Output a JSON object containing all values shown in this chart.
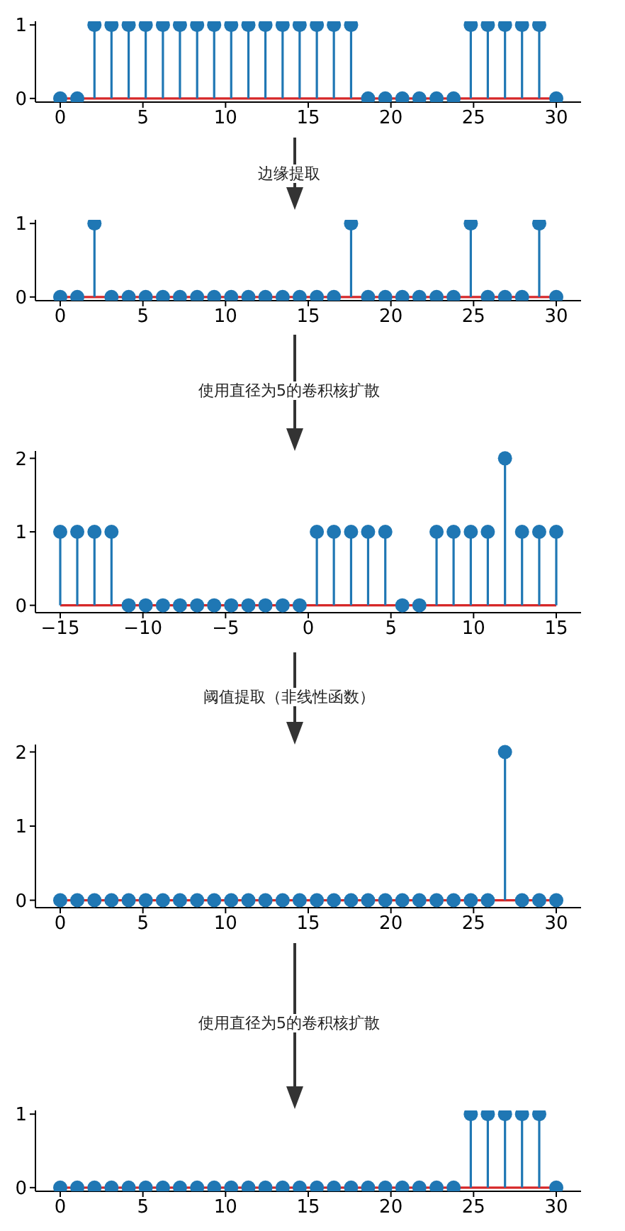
{
  "chart_data": [
    {
      "type": "lollipop",
      "x": [
        0,
        1.03,
        2.07,
        3.1,
        4.14,
        5.17,
        6.21,
        7.24,
        8.28,
        9.31,
        10.34,
        11.38,
        12.41,
        13.45,
        14.48,
        15.52,
        16.55,
        17.59,
        18.62,
        19.66,
        20.69,
        21.72,
        22.76,
        23.79,
        24.83,
        25.86,
        26.9,
        27.93,
        28.97,
        30
      ],
      "series": [
        {
          "color": "#1f77b4",
          "values": [
            0,
            0,
            1,
            1,
            1,
            1,
            1,
            1,
            1,
            1,
            1,
            1,
            1,
            1,
            1,
            1,
            1,
            1,
            0,
            0,
            0,
            0,
            0,
            0,
            1,
            1,
            1,
            1,
            1,
            0
          ]
        }
      ],
      "xlim": [
        -1.5,
        31.5
      ],
      "xticks": [
        0,
        5,
        10,
        15,
        20,
        25,
        30
      ],
      "ylim": [
        -0.05,
        1.05
      ],
      "yticks": [
        0,
        1
      ],
      "marker": "circle",
      "grid": false,
      "legend": false,
      "ref_lines": [
        {
          "axis": "y",
          "value": 0,
          "color": "#d62728"
        }
      ],
      "annotations": [
        "边缘提取"
      ]
    },
    {
      "type": "lollipop",
      "x": [
        0,
        1.03,
        2.07,
        3.1,
        4.14,
        5.17,
        6.21,
        7.24,
        8.28,
        9.31,
        10.34,
        11.38,
        12.41,
        13.45,
        14.48,
        15.52,
        16.55,
        17.59,
        18.62,
        19.66,
        20.69,
        21.72,
        22.76,
        23.79,
        24.83,
        25.86,
        26.9,
        27.93,
        28.97,
        30
      ],
      "series": [
        {
          "color": "#1f77b4",
          "values": [
            0,
            0,
            1,
            0,
            0,
            0,
            0,
            0,
            0,
            0,
            0,
            0,
            0,
            0,
            0,
            0,
            0,
            1,
            0,
            0,
            0,
            0,
            0,
            0,
            1,
            0,
            0,
            0,
            1,
            0
          ]
        }
      ],
      "xlim": [
        -1.5,
        31.5
      ],
      "xticks": [
        0,
        5,
        10,
        15,
        20,
        25,
        30
      ],
      "ylim": [
        -0.05,
        1.05
      ],
      "yticks": [
        0,
        1
      ],
      "marker": "circle",
      "grid": false,
      "legend": false,
      "ref_lines": [
        {
          "axis": "y",
          "value": 0,
          "color": "#d62728"
        }
      ],
      "annotations": [
        "使用直径为5的卷积核扩散"
      ]
    },
    {
      "type": "lollipop",
      "x": [
        -15,
        -13.97,
        -12.93,
        -11.9,
        -10.86,
        -9.83,
        -8.79,
        -7.76,
        -6.72,
        -5.69,
        -4.66,
        -3.62,
        -2.59,
        -1.55,
        -0.52,
        0.52,
        1.55,
        2.59,
        3.62,
        4.66,
        5.69,
        6.72,
        7.76,
        8.79,
        9.83,
        10.86,
        11.9,
        12.93,
        13.97,
        15
      ],
      "series": [
        {
          "color": "#1f77b4",
          "values": [
            1,
            1,
            1,
            1,
            0,
            0,
            0,
            0,
            0,
            0,
            0,
            0,
            0,
            0,
            0,
            1,
            1,
            1,
            1,
            1,
            0,
            0,
            1,
            1,
            1,
            1,
            2,
            1,
            1,
            1
          ]
        }
      ],
      "xlim": [
        -16.5,
        16.5
      ],
      "xticks": [
        {
          "value": -15,
          "label": "−15"
        },
        {
          "value": -10,
          "label": "−10"
        },
        {
          "value": -5,
          "label": "−5"
        },
        0,
        5,
        10,
        15
      ],
      "ylim": [
        -0.1,
        2.1
      ],
      "yticks": [
        0,
        1,
        2
      ],
      "marker": "circle",
      "grid": false,
      "legend": false,
      "ref_lines": [
        {
          "axis": "y",
          "value": 0,
          "color": "#d62728"
        }
      ],
      "annotations": [
        "阈值提取（非线性函数）"
      ]
    },
    {
      "type": "lollipop",
      "x": [
        0,
        1.03,
        2.07,
        3.1,
        4.14,
        5.17,
        6.21,
        7.24,
        8.28,
        9.31,
        10.34,
        11.38,
        12.41,
        13.45,
        14.48,
        15.52,
        16.55,
        17.59,
        18.62,
        19.66,
        20.69,
        21.72,
        22.76,
        23.79,
        24.83,
        25.86,
        26.9,
        27.93,
        28.97,
        30
      ],
      "series": [
        {
          "color": "#1f77b4",
          "values": [
            0,
            0,
            0,
            0,
            0,
            0,
            0,
            0,
            0,
            0,
            0,
            0,
            0,
            0,
            0,
            0,
            0,
            0,
            0,
            0,
            0,
            0,
            0,
            0,
            0,
            0,
            2,
            0,
            0,
            0
          ]
        }
      ],
      "xlim": [
        -1.5,
        31.5
      ],
      "xticks": [
        0,
        5,
        10,
        15,
        20,
        25,
        30
      ],
      "ylim": [
        -0.1,
        2.1
      ],
      "yticks": [
        0,
        1,
        2
      ],
      "marker": "circle",
      "grid": false,
      "legend": false,
      "ref_lines": [
        {
          "axis": "y",
          "value": 0,
          "color": "#d62728"
        }
      ],
      "annotations": [
        "使用直径为5的卷积核扩散"
      ]
    },
    {
      "type": "lollipop",
      "x": [
        0,
        1.03,
        2.07,
        3.1,
        4.14,
        5.17,
        6.21,
        7.24,
        8.28,
        9.31,
        10.34,
        11.38,
        12.41,
        13.45,
        14.48,
        15.52,
        16.55,
        17.59,
        18.62,
        19.66,
        20.69,
        21.72,
        22.76,
        23.79,
        24.83,
        25.86,
        26.9,
        27.93,
        28.97,
        30
      ],
      "series": [
        {
          "color": "#1f77b4",
          "values": [
            0,
            0,
            0,
            0,
            0,
            0,
            0,
            0,
            0,
            0,
            0,
            0,
            0,
            0,
            0,
            0,
            0,
            0,
            0,
            0,
            0,
            0,
            0,
            0,
            1,
            1,
            1,
            1,
            1,
            0
          ]
        }
      ],
      "xlim": [
        -1.5,
        31.5
      ],
      "xticks": [
        0,
        5,
        10,
        15,
        20,
        25,
        30
      ],
      "ylim": [
        -0.05,
        1.05
      ],
      "yticks": [
        0,
        1
      ],
      "marker": "circle",
      "grid": false,
      "legend": false,
      "ref_lines": [
        {
          "axis": "y",
          "value": 0,
          "color": "#d62728"
        }
      ]
    }
  ]
}
